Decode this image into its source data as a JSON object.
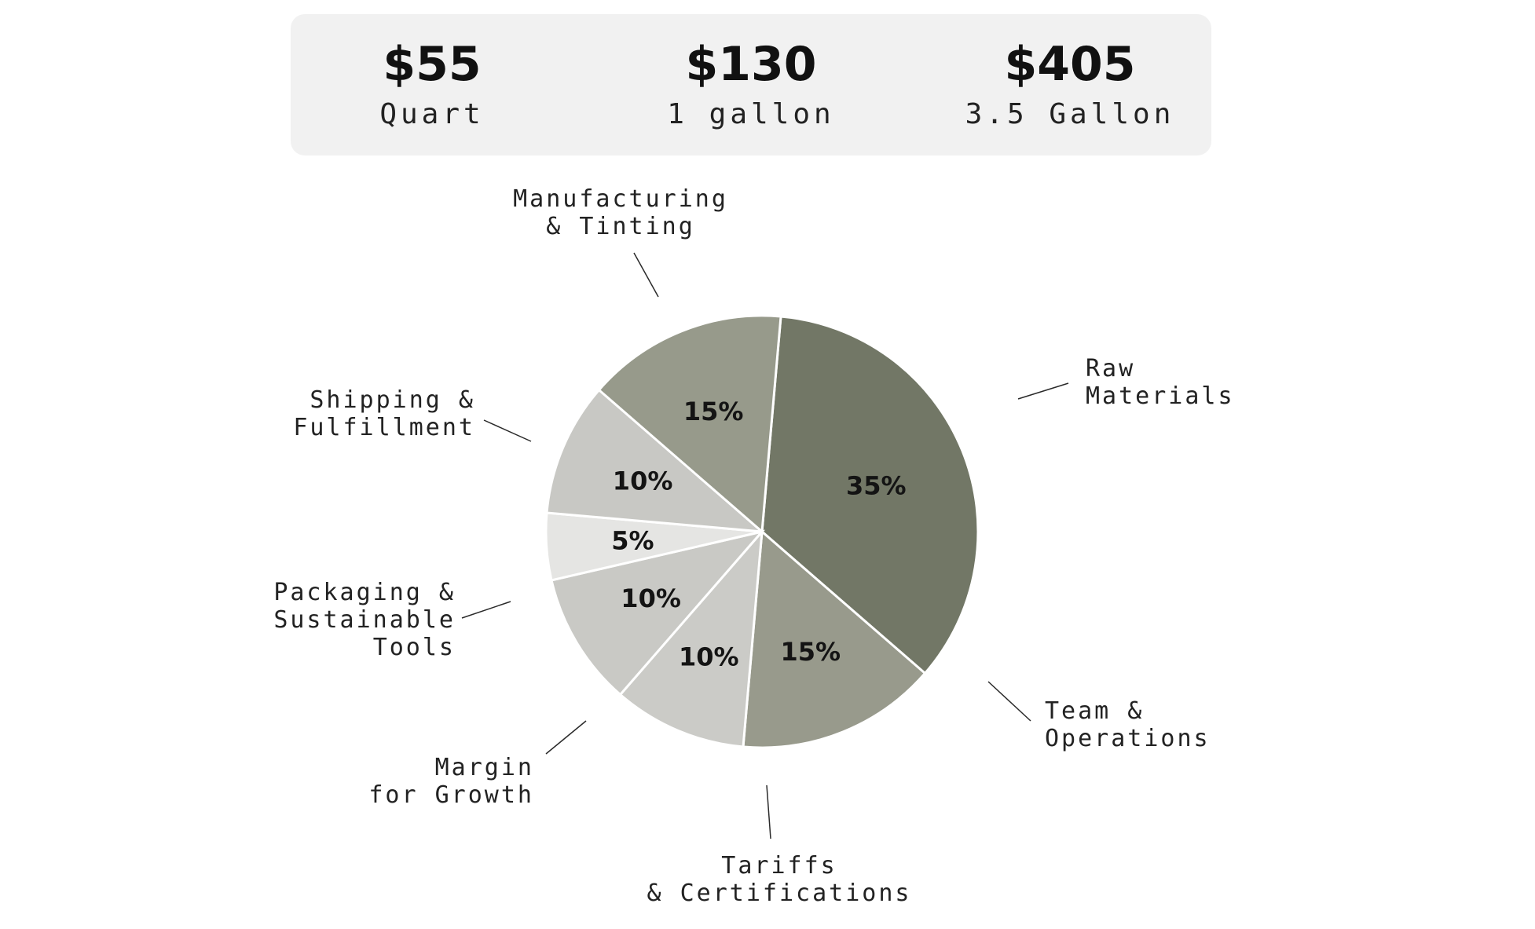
{
  "prices": [
    {
      "value": "$55",
      "label": "Quart"
    },
    {
      "value": "$130",
      "label": "1 gallon"
    },
    {
      "value": "$405",
      "label": "3.5 Gallon"
    }
  ],
  "chart_data": {
    "type": "pie",
    "title": "",
    "unit": "%",
    "slices": [
      {
        "name": "Raw\nMaterials",
        "value": 35,
        "label": "35%",
        "color": "#727766"
      },
      {
        "name": "Team &\nOperations",
        "value": 15,
        "label": "15%",
        "color": "#989a8c"
      },
      {
        "name": "Tariffs\n& Certifications",
        "value": 10,
        "label": "10%",
        "color": "#cbcbc7"
      },
      {
        "name": "Margin\nfor Growth",
        "value": 10,
        "label": "10%",
        "color": "#c9c9c5"
      },
      {
        "name": "Packaging &\nSustainable\nTools",
        "value": 5,
        "label": "5%",
        "color": "#e5e5e3"
      },
      {
        "name": "Shipping &\nFulfillment",
        "value": 10,
        "label": "10%",
        "color": "#c8c8c4"
      },
      {
        "name": "Manufacturing\n& Tinting",
        "value": 15,
        "label": "15%",
        "color": "#979a8b"
      }
    ]
  }
}
